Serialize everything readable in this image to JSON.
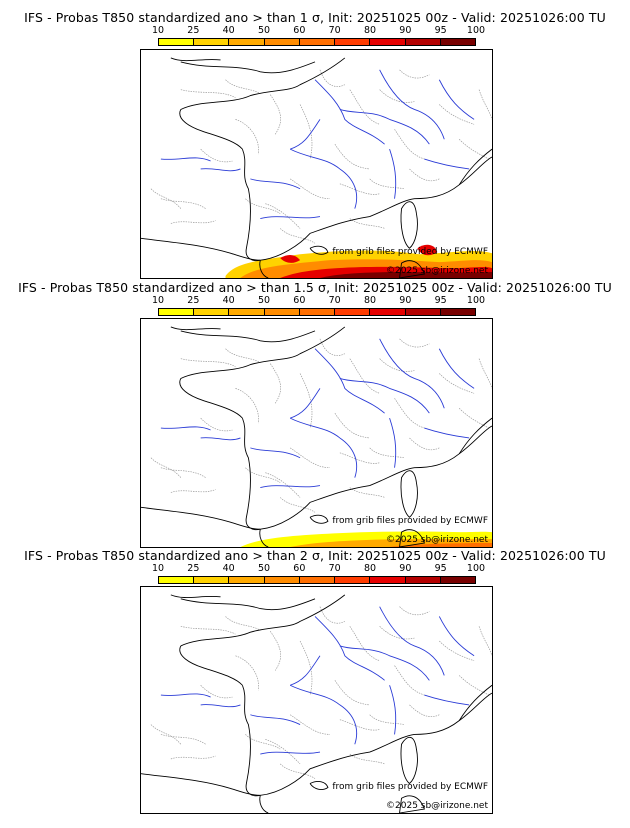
{
  "scale": {
    "ticks": [
      "10",
      "25",
      "40",
      "50",
      "60",
      "70",
      "80",
      "90",
      "95",
      "100"
    ],
    "colors": [
      "#ffff00",
      "#ffd200",
      "#ffaa00",
      "#ff8c00",
      "#ff6e00",
      "#ff3c00",
      "#e60000",
      "#b40000",
      "#780000"
    ]
  },
  "credits": {
    "source": "from grib files provided by ECMWF",
    "copyright": "©2025 sb@irizone.net"
  },
  "panels": [
    {
      "title": "IFS - Probas T850  standardized ano > than 1 σ, Init: 20251025 00z - Valid: 20251026:00 TU",
      "threshold": "1 σ"
    },
    {
      "title": "IFS - Probas T850  standardized ano > than 1.5 σ, Init: 20251025 00z - Valid: 20251026:00 TU",
      "threshold": "1.5 σ"
    },
    {
      "title": "IFS - Probas T850  standardized ano > than 2 σ, Init: 20251025 00z - Valid: 20251026:00 TU",
      "threshold": "2 σ"
    }
  ]
}
